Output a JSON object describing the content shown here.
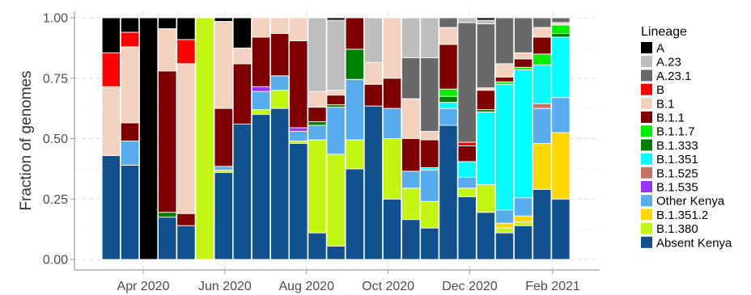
{
  "chart_data": {
    "type": "bar",
    "stacked": true,
    "xlabel": "",
    "ylabel": "Fraction of genomes",
    "ylim": [
      0,
      1
    ],
    "yticks": [
      "0.00",
      "0.25",
      "0.50",
      "0.75",
      "1.00"
    ],
    "xticks": [
      "Apr 2020",
      "Jun 2020",
      "Aug 2020",
      "Oct 2020",
      "Dec 2020",
      "Feb 2021"
    ],
    "xtick_dates": [
      "2020-04-01",
      "2020-06-01",
      "2020-08-01",
      "2020-10-01",
      "2020-12-01",
      "2021-02-01"
    ],
    "grid": true,
    "legend": {
      "title": "Lineage",
      "position": "right",
      "entries": [
        {
          "name": "A",
          "color": "#000000"
        },
        {
          "name": "A.23",
          "color": "#bebebe"
        },
        {
          "name": "A.23.1",
          "color": "#696969"
        },
        {
          "name": "B",
          "color": "#ff0000"
        },
        {
          "name": "B.1",
          "color": "#f2d1bf"
        },
        {
          "name": "B.1.1",
          "color": "#800000"
        },
        {
          "name": "B.1.1.7",
          "color": "#00ee00"
        },
        {
          "name": "B.1.333",
          "color": "#008000"
        },
        {
          "name": "B.1.351",
          "color": "#00ffff"
        },
        {
          "name": "B.1.525",
          "color": "#c87261"
        },
        {
          "name": "B.1.535",
          "color": "#9b30ff"
        },
        {
          "name": "Other Kenya",
          "color": "#57acee"
        },
        {
          "name": "B.1.351.2",
          "color": "#ffd700"
        },
        {
          "name": "B.1.380",
          "color": "#c2f512"
        },
        {
          "name": "Absent Kenya",
          "color": "#11508f"
        }
      ]
    },
    "stack_order": [
      "Absent Kenya",
      "B.1.380",
      "B.1.351.2",
      "Other Kenya",
      "B.1.535",
      "B.1.525",
      "B.1.351",
      "B.1.333",
      "B.1.1.7",
      "B.1.1",
      "B.1",
      "B",
      "A.23.1",
      "A.23",
      "A"
    ],
    "bars": [
      {
        "week": "2020-03-08",
        "values": {
          "Absent Kenya": 0.43,
          "B.1": 0.285,
          "B": 0.14,
          "A": 0.145
        }
      },
      {
        "week": "2020-03-22",
        "values": {
          "Absent Kenya": 0.39,
          "Other Kenya": 0.1,
          "B.1.1": 0.075,
          "B.1": 0.315,
          "B": 0.06,
          "A": 0.06
        }
      },
      {
        "week": "2020-04-05",
        "values": {
          "A": 1.0
        }
      },
      {
        "week": "2020-04-19",
        "values": {
          "Absent Kenya": 0.175,
          "B.1.333": 0.02,
          "B.1.1": 0.585,
          "B.1": 0.175,
          "A": 0.045
        }
      },
      {
        "week": "2020-05-03",
        "values": {
          "Absent Kenya": 0.14,
          "B.1.1": 0.05,
          "B.1": 0.62,
          "B": 0.1,
          "A": 0.09
        }
      },
      {
        "week": "2020-05-17",
        "values": {
          "B.1.380": 1.0
        }
      },
      {
        "week": "2020-05-31",
        "values": {
          "Absent Kenya": 0.36,
          "B.1.380": 0.01,
          "Other Kenya": 0.015,
          "B.1.1": 0.24,
          "B.1": 0.36,
          "A": 0.015
        }
      },
      {
        "week": "2020-06-14",
        "values": {
          "Absent Kenya": 0.56,
          "B.1.1": 0.25,
          "B.1": 0.065,
          "A": 0.125
        }
      },
      {
        "week": "2020-06-28",
        "values": {
          "Absent Kenya": 0.6,
          "B.1.380": 0.02,
          "Other Kenya": 0.075,
          "B.1.535": 0.02,
          "B.1.1": 0.205,
          "B.1": 0.08
        }
      },
      {
        "week": "2020-07-12",
        "values": {
          "Absent Kenya": 0.625,
          "B.1.380": 0.075,
          "Other Kenya": 0.06,
          "B.1.1": 0.175,
          "B.1": 0.065
        }
      },
      {
        "week": "2020-07-26",
        "values": {
          "Absent Kenya": 0.48,
          "B.1.380": 0.01,
          "Other Kenya": 0.04,
          "B.1.535": 0.015,
          "B.1.1": 0.36,
          "B.1": 0.095
        }
      },
      {
        "week": "2020-08-09",
        "values": {
          "Absent Kenya": 0.11,
          "B.1.380": 0.385,
          "Other Kenya": 0.06,
          "B.1.333": 0.015,
          "B.1.1": 0.06,
          "B.1": 0.065,
          "A.23": 0.305
        }
      },
      {
        "week": "2020-08-23",
        "values": {
          "Absent Kenya": 0.055,
          "B.1.380": 0.38,
          "Other Kenya": 0.195,
          "B.1.333": 0.01,
          "B.1.1": 0.04,
          "B.1": 0.02,
          "A.23": 0.29,
          "A": 0.01
        }
      },
      {
        "week": "2020-09-06",
        "values": {
          "Absent Kenya": 0.375,
          "B.1.380": 0.12,
          "Other Kenya": 0.25,
          "B.1.333": 0.125,
          "B.1.1": 0.13
        }
      },
      {
        "week": "2020-09-20",
        "values": {
          "Absent Kenya": 0.635,
          "B.1.1": 0.09,
          "B.1": 0.09,
          "A.23": 0.185
        }
      },
      {
        "week": "2020-10-04",
        "values": {
          "Absent Kenya": 0.25,
          "B.1.380": 0.25,
          "Other Kenya": 0.125,
          "B.1.1": 0.125,
          "B.1": 0.25
        }
      },
      {
        "week": "2020-10-18",
        "values": {
          "Absent Kenya": 0.165,
          "B.1.380": 0.13,
          "Other Kenya": 0.07,
          "B.1.1": 0.135,
          "B.1": 0.165,
          "A.23.1": 0.17,
          "A.23": 0.165
        }
      },
      {
        "week": "2020-11-01",
        "values": {
          "Absent Kenya": 0.13,
          "B.1.380": 0.11,
          "Other Kenya": 0.13,
          "B.1.351": 0.01,
          "B.1.1": 0.115,
          "B.1": 0.035,
          "A.23.1": 0.305,
          "A.23": 0.165
        }
      },
      {
        "week": "2020-11-15",
        "values": {
          "Absent Kenya": 0.555,
          "Other Kenya": 0.07,
          "B.1.351": 0.025,
          "B.1.333": 0.025,
          "B.1.1.7": 0.03,
          "B.1.1": 0.185,
          "B.1": 0.07,
          "A.23.1": 0.04
        }
      },
      {
        "week": "2020-11-29",
        "values": {
          "Absent Kenya": 0.26,
          "B.1.380": 0.035,
          "Other Kenya": 0.045,
          "B.1.351": 0.065,
          "B.1.1": 0.065,
          "B": 0.015,
          "A.23.1": 0.495,
          "A.23": 0.02
        }
      },
      {
        "week": "2020-12-13",
        "values": {
          "Absent Kenya": 0.195,
          "B.1.380": 0.115,
          "B.1.351": 0.3,
          "B.1.333": 0.01,
          "B.1.1": 0.08,
          "B.1": 0.01,
          "A.23.1": 0.265,
          "A.23": 0.015,
          "A": 0.01
        }
      },
      {
        "week": "2020-12-27",
        "values": {
          "Absent Kenya": 0.11,
          "B.1.380": 0.02,
          "B.1.351.2": 0.02,
          "Other Kenya": 0.055,
          "B.1.351": 0.52,
          "B.1.1.7": 0.01,
          "B.1.1": 0.02,
          "B.1": 0.055,
          "A.23.1": 0.19
        }
      },
      {
        "week": "2021-01-10",
        "values": {
          "Absent Kenya": 0.14,
          "B.1.380": 0.015,
          "B.1.351.2": 0.025,
          "Other Kenya": 0.075,
          "B.1.351": 0.53,
          "B.1.1.7": 0.01,
          "B.1.1": 0.035,
          "B.1": 0.025,
          "A.23.1": 0.145
        }
      },
      {
        "week": "2021-01-24",
        "values": {
          "Absent Kenya": 0.29,
          "B.1.351.2": 0.19,
          "Other Kenya": 0.145,
          "B.1.525": 0.02,
          "B.1.351": 0.16,
          "B.1.1.7": 0.045,
          "B.1.1": 0.07,
          "B.1": 0.04,
          "A.23.1": 0.04
        }
      },
      {
        "week": "2021-02-07",
        "values": {
          "Absent Kenya": 0.25,
          "B.1.351.2": 0.275,
          "Other Kenya": 0.145,
          "B.1.351": 0.25,
          "B.1.333": 0.015,
          "B.1.1.7": 0.035,
          "B.1": 0.01,
          "A.23.1": 0.02
        }
      }
    ]
  }
}
